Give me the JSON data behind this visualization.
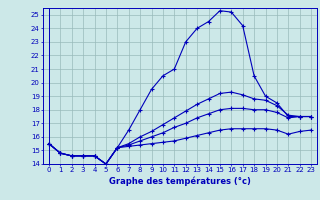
{
  "title": "Graphe des températures (°c)",
  "bg_color": "#cce8e8",
  "line_color": "#0000bb",
  "grid_color": "#99bbbb",
  "ylim": [
    14,
    25.5
  ],
  "xlim": [
    -0.5,
    23.5
  ],
  "yticks": [
    14,
    15,
    16,
    17,
    18,
    19,
    20,
    21,
    22,
    23,
    24,
    25
  ],
  "xticks": [
    0,
    1,
    2,
    3,
    4,
    5,
    6,
    7,
    8,
    9,
    10,
    11,
    12,
    13,
    14,
    15,
    16,
    17,
    18,
    19,
    20,
    21,
    22,
    23
  ],
  "series": [
    [
      15.5,
      14.8,
      14.6,
      14.6,
      14.6,
      14.0,
      15.2,
      16.5,
      18.0,
      19.5,
      20.5,
      21.0,
      23.0,
      24.0,
      24.5,
      25.3,
      25.2,
      24.2,
      20.5,
      19.0,
      18.5,
      17.5,
      17.5,
      17.5
    ],
    [
      15.5,
      14.8,
      14.6,
      14.6,
      14.6,
      14.0,
      15.2,
      15.3,
      15.4,
      15.5,
      15.6,
      15.7,
      15.9,
      16.1,
      16.3,
      16.5,
      16.6,
      16.6,
      16.6,
      16.6,
      16.5,
      16.2,
      16.4,
      16.5
    ],
    [
      15.5,
      14.8,
      14.6,
      14.6,
      14.6,
      14.0,
      15.2,
      15.4,
      15.7,
      16.0,
      16.3,
      16.7,
      17.0,
      17.4,
      17.7,
      18.0,
      18.1,
      18.1,
      18.0,
      18.0,
      17.8,
      17.4,
      17.5,
      17.5
    ],
    [
      15.5,
      14.8,
      14.6,
      14.6,
      14.6,
      14.0,
      15.2,
      15.5,
      16.0,
      16.4,
      16.9,
      17.4,
      17.9,
      18.4,
      18.8,
      19.2,
      19.3,
      19.1,
      18.8,
      18.7,
      18.3,
      17.6,
      17.5,
      17.5
    ]
  ]
}
